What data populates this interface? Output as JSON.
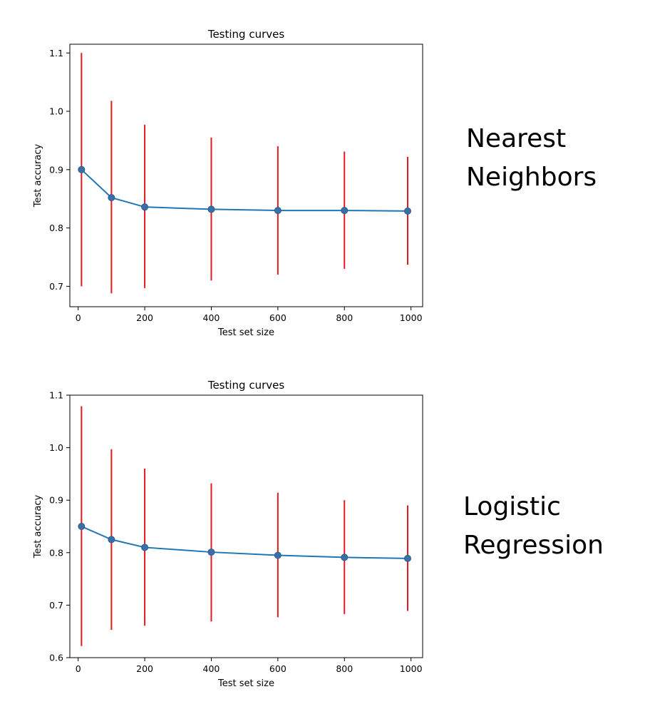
{
  "chart_data": [
    {
      "type": "line",
      "title": "Testing curves",
      "xlabel": "Test set size",
      "ylabel": "Test accuracy",
      "xlim": [
        -25,
        1035
      ],
      "ylim": [
        0.665,
        1.115
      ],
      "xticks": [
        0,
        200,
        400,
        600,
        800,
        1000
      ],
      "yticks": [
        0.7,
        0.8,
        0.9,
        1.0,
        1.1
      ],
      "ytick_labels": [
        "0.7",
        "0.8",
        "0.9",
        "1.0",
        "1.1"
      ],
      "grid": false,
      "line_color": "#1f77b4",
      "errorbar_color": "#e41a1c",
      "series": [
        {
          "x": [
            10,
            100,
            200,
            400,
            600,
            800,
            990
          ],
          "y": [
            0.9,
            0.852,
            0.836,
            0.832,
            0.83,
            0.83,
            0.829
          ],
          "err_low": [
            0.7,
            0.688,
            0.697,
            0.71,
            0.72,
            0.73,
            0.737
          ],
          "err_high": [
            1.1,
            1.018,
            0.977,
            0.955,
            0.94,
            0.931,
            0.922
          ]
        }
      ]
    },
    {
      "type": "line",
      "title": "Testing curves",
      "xlabel": "Test set size",
      "ylabel": "Test accuracy",
      "xlim": [
        -25,
        1035
      ],
      "ylim": [
        0.6,
        1.1
      ],
      "xticks": [
        0,
        200,
        400,
        600,
        800,
        1000
      ],
      "yticks": [
        0.6,
        0.7,
        0.8,
        0.9,
        1.0,
        1.1
      ],
      "ytick_labels": [
        "0.6",
        "0.7",
        "0.8",
        "0.9",
        "1.0",
        "1.1"
      ],
      "grid": false,
      "line_color": "#1f77b4",
      "errorbar_color": "#e41a1c",
      "series": [
        {
          "x": [
            10,
            100,
            200,
            400,
            600,
            800,
            990
          ],
          "y": [
            0.85,
            0.825,
            0.81,
            0.801,
            0.795,
            0.791,
            0.789
          ],
          "err_low": [
            0.622,
            0.653,
            0.661,
            0.669,
            0.677,
            0.683,
            0.689
          ],
          "err_high": [
            1.079,
            0.997,
            0.96,
            0.932,
            0.914,
            0.9,
            0.89
          ]
        }
      ]
    }
  ],
  "annotations": {
    "top": [
      "Nearest",
      "Neighbors"
    ],
    "bottom": [
      "Logistic",
      "Regression"
    ]
  }
}
